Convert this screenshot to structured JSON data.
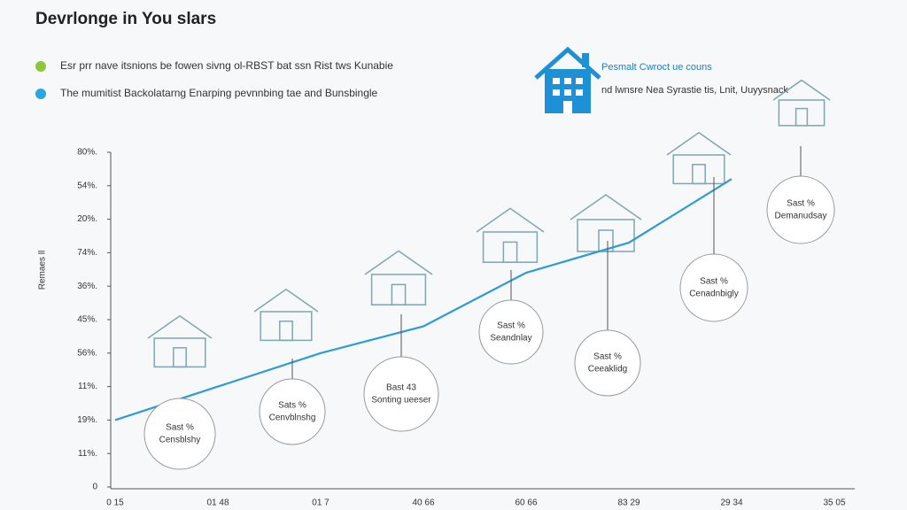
{
  "chart_data": {
    "type": "line",
    "title": "Devrlonge in You slars",
    "legend": [
      {
        "label": "Esr prr nave itsnions be fowen sivng ol-RBST bat ssn Rist tws Kunabie",
        "color": "#8cc63f"
      },
      {
        "label": "The mumitist Backolatarng Enarping pevnnbing tae and Bunsbingle",
        "color": "#29a8e0"
      }
    ],
    "y_label": "Remaes ll",
    "callout": {
      "title": "Pesmalt Cwroct ue couns",
      "text": "nd lwnsre Nea Syrastie tis, Lnit, Uuyysnack"
    },
    "categories": [
      "0 15",
      "01 48",
      "01 7",
      "40 66",
      "60 66",
      "83 29",
      "29 34",
      "35 05"
    ],
    "series": [
      {
        "name": "Remaes",
        "color": "#2e9bd6",
        "values": [
          2.0,
          3.0,
          4.0,
          4.8,
          6.4,
          7.3,
          9.2,
          null
        ]
      }
    ],
    "ylim": [
      0,
      10
    ],
    "yticks": [
      0,
      {
        "value": 1,
        "label": "11%."
      },
      {
        "value": 2,
        "label": "19%."
      },
      {
        "value": 3,
        "label": "11%."
      },
      {
        "value": 4,
        "label": "56%."
      },
      {
        "value": 5,
        "label": "45%."
      },
      {
        "value": 6,
        "label": "36%."
      },
      {
        "value": 7,
        "label": "74%."
      },
      {
        "value": 8,
        "label": "20%."
      },
      {
        "value": 9,
        "label": "54%."
      },
      {
        "value": 10,
        "label": "80%."
      }
    ],
    "annotations": [
      [
        "Sast %",
        "Censblshy"
      ],
      [
        "Sats %",
        "Cenvblnshg"
      ],
      [
        "Bast 43",
        "Sonting ueeser"
      ],
      [
        "Sast %",
        "Seandnlay"
      ],
      [
        "Sast %",
        "Ceeaklidg"
      ],
      [
        "Sast %",
        "Cenadnbigly"
      ],
      [
        "Sast %",
        "Demanudsay"
      ]
    ]
  }
}
